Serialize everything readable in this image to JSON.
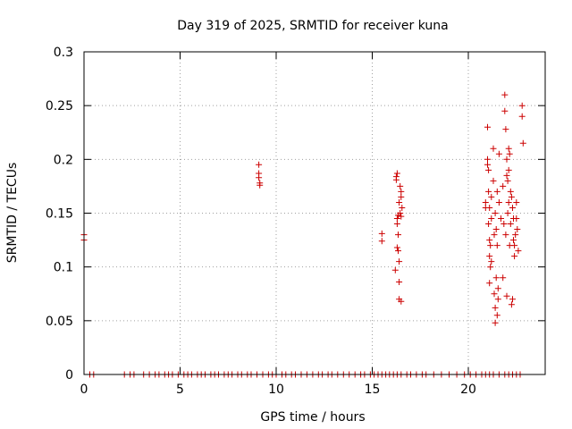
{
  "chart_data": {
    "type": "scatter",
    "title": "Day 319 of 2025, SRMTID for receiver kuna",
    "xlabel": "GPS time / hours",
    "ylabel": "SRMTID / TECUs",
    "xlim": [
      0,
      24
    ],
    "ylim": [
      0,
      0.3
    ],
    "x_ticks": [
      0,
      5,
      10,
      15,
      20
    ],
    "x_tick_labels": [
      "0",
      "5",
      "10",
      "15",
      "20"
    ],
    "y_ticks": [
      0,
      0.05,
      0.1,
      0.15,
      0.2,
      0.25,
      0.3
    ],
    "y_tick_labels": [
      "0",
      "0.05",
      "0.1",
      "0.15",
      "0.2",
      "0.25",
      "0.3"
    ],
    "grid": true,
    "marker": "plus",
    "color": "#cc0000",
    "series": [
      {
        "name": "SRMTID",
        "x": [
          0.0,
          0.0,
          9.1,
          9.1,
          9.1,
          9.15,
          9.15,
          15.5,
          15.5,
          16.2,
          16.25,
          16.25,
          16.3,
          16.3,
          16.3,
          16.3,
          16.35,
          16.35,
          16.35,
          16.4,
          16.4,
          16.4,
          16.4,
          16.45,
          16.45,
          16.5,
          16.5,
          16.5,
          16.5,
          16.55,
          20.9,
          20.9,
          21.0,
          21.0,
          21.0,
          21.05,
          21.05,
          21.05,
          21.1,
          21.1,
          21.1,
          21.1,
          21.15,
          21.15,
          21.2,
          21.2,
          21.2,
          21.3,
          21.3,
          21.35,
          21.35,
          21.4,
          21.4,
          21.4,
          21.45,
          21.45,
          21.5,
          21.5,
          21.5,
          21.55,
          21.55,
          21.6,
          21.6,
          21.7,
          21.8,
          21.8,
          21.85,
          21.9,
          21.9,
          21.95,
          21.95,
          22.0,
          22.0,
          22.0,
          22.05,
          22.05,
          22.1,
          22.1,
          22.1,
          22.15,
          22.15,
          22.2,
          22.2,
          22.25,
          22.25,
          22.3,
          22.3,
          22.35,
          22.35,
          22.4,
          22.4,
          22.45,
          22.5,
          22.5,
          22.55,
          22.6,
          22.8,
          22.8,
          22.85,
          0.3,
          0.5,
          2.1,
          2.4,
          2.6,
          3.1,
          3.4,
          3.7,
          3.9,
          4.2,
          4.4,
          4.6,
          4.9,
          5.2,
          5.4,
          5.6,
          5.9,
          6.1,
          6.3,
          6.6,
          6.8,
          7.0,
          7.3,
          7.5,
          7.7,
          8.0,
          8.2,
          8.5,
          8.7,
          9.0,
          9.3,
          9.6,
          9.8,
          10.0,
          10.3,
          10.5,
          10.8,
          11.0,
          11.3,
          11.6,
          11.9,
          12.2,
          12.4,
          12.7,
          12.9,
          13.2,
          13.5,
          13.8,
          14.1,
          14.4,
          14.6,
          14.9,
          15.1,
          15.3,
          15.5,
          15.7,
          15.9,
          16.1,
          16.3,
          16.5,
          16.8,
          17.0,
          17.3,
          17.6,
          17.8,
          18.2,
          18.6,
          19.0,
          19.4,
          19.8,
          20.1,
          20.4,
          20.7,
          20.9,
          21.1,
          21.3,
          21.6,
          21.9,
          22.1,
          22.3,
          22.5,
          22.7
        ],
        "y": [
          0.125,
          0.13,
          0.195,
          0.187,
          0.183,
          0.178,
          0.176,
          0.131,
          0.124,
          0.097,
          0.184,
          0.181,
          0.187,
          0.14,
          0.145,
          0.118,
          0.148,
          0.13,
          0.115,
          0.16,
          0.105,
          0.086,
          0.07,
          0.175,
          0.15,
          0.17,
          0.165,
          0.147,
          0.068,
          0.155,
          0.16,
          0.155,
          0.23,
          0.2,
          0.195,
          0.19,
          0.17,
          0.14,
          0.155,
          0.125,
          0.11,
          0.085,
          0.1,
          0.12,
          0.165,
          0.145,
          0.105,
          0.21,
          0.18,
          0.13,
          0.075,
          0.15,
          0.062,
          0.048,
          0.135,
          0.09,
          0.17,
          0.12,
          0.055,
          0.08,
          0.07,
          0.205,
          0.16,
          0.145,
          0.175,
          0.09,
          0.14,
          0.26,
          0.245,
          0.228,
          0.13,
          0.2,
          0.185,
          0.073,
          0.18,
          0.15,
          0.21,
          0.19,
          0.16,
          0.205,
          0.12,
          0.17,
          0.14,
          0.165,
          0.065,
          0.155,
          0.07,
          0.125,
          0.145,
          0.11,
          0.12,
          0.13,
          0.16,
          0.145,
          0.135,
          0.115,
          0.25,
          0.24,
          0.215,
          0.0,
          0.0,
          0.0,
          0.0,
          0.0,
          0.0,
          0.0,
          0.0,
          0.0,
          0.0,
          0.0,
          0.0,
          0.0,
          0.0,
          0.0,
          0.0,
          0.0,
          0.0,
          0.0,
          0.0,
          0.0,
          0.0,
          0.0,
          0.0,
          0.0,
          0.0,
          0.0,
          0.0,
          0.0,
          0.0,
          0.0,
          0.0,
          0.0,
          0.0,
          0.0,
          0.0,
          0.0,
          0.0,
          0.0,
          0.0,
          0.0,
          0.0,
          0.0,
          0.0,
          0.0,
          0.0,
          0.0,
          0.0,
          0.0,
          0.0,
          0.0,
          0.0,
          0.0,
          0.0,
          0.0,
          0.0,
          0.0,
          0.0,
          0.0,
          0.0,
          0.0,
          0.0,
          0.0,
          0.0,
          0.0,
          0.0,
          0.0,
          0.0,
          0.0,
          0.0,
          0.0,
          0.0,
          0.0,
          0.0,
          0.0,
          0.0,
          0.0,
          0.0,
          0.0,
          0.0,
          0.0,
          0.0
        ]
      }
    ]
  }
}
